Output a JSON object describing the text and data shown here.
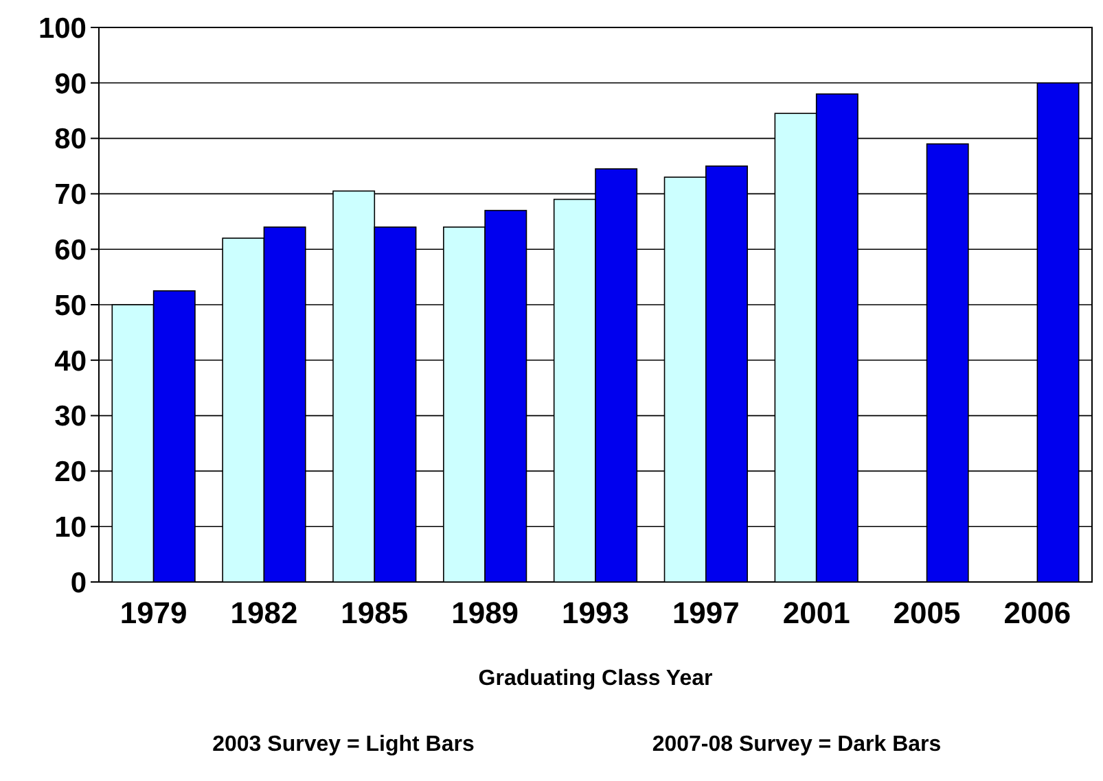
{
  "chart_data": {
    "type": "bar",
    "xlabel": "Graduating Class Year",
    "categories": [
      "1979",
      "1982",
      "1985",
      "1989",
      "1993",
      "1997",
      "2001",
      "2005",
      "2006"
    ],
    "series": [
      {
        "color": "#ccffff",
        "values": [
          50,
          62,
          70.5,
          64,
          69,
          73,
          84.5,
          null,
          null
        ]
      },
      {
        "color": "#0000ee",
        "values": [
          52.5,
          64,
          64,
          67,
          74.5,
          75,
          88,
          79,
          90
        ]
      }
    ],
    "ylim": [
      0,
      100
    ],
    "yticks": [
      0,
      10,
      20,
      30,
      40,
      50,
      60,
      70,
      80,
      90,
      100
    ],
    "grid": "y",
    "annotations": [
      "2003 Survey = Light Bars",
      "2007-08 Survey = Dark Bars"
    ]
  }
}
